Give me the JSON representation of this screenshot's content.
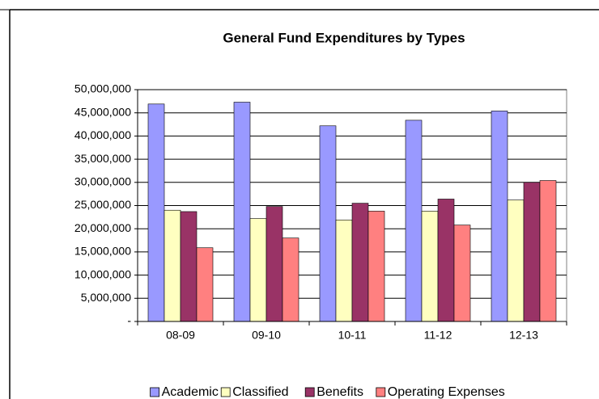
{
  "chart_data": {
    "type": "bar",
    "title": "General Fund Expenditures by Types",
    "categories": [
      "08-09",
      "09-10",
      "10-11",
      "11-12",
      "12-13"
    ],
    "series": [
      {
        "name": "Academic",
        "color": "#9999ff",
        "values": [
          46900000,
          47300000,
          42200000,
          43400000,
          45400000
        ]
      },
      {
        "name": "Classified",
        "color": "#ffffc0",
        "values": [
          24000000,
          22200000,
          21900000,
          23800000,
          26200000
        ]
      },
      {
        "name": "Benefits",
        "color": "#993366",
        "values": [
          23700000,
          24800000,
          25500000,
          26400000,
          30000000
        ]
      },
      {
        "name": "Operating Expenses",
        "color": "#ff8080",
        "values": [
          15900000,
          18000000,
          23800000,
          20800000,
          30400000
        ]
      }
    ],
    "ylim": [
      0,
      50000000
    ],
    "yticks": [
      {
        "value": 0,
        "label": "-"
      },
      {
        "value": 5000000,
        "label": "5,000,000"
      },
      {
        "value": 10000000,
        "label": "10,000,000"
      },
      {
        "value": 15000000,
        "label": "15,000,000"
      },
      {
        "value": 20000000,
        "label": "20,000,000"
      },
      {
        "value": 25000000,
        "label": "25,000,000"
      },
      {
        "value": 30000000,
        "label": "30,000,000"
      },
      {
        "value": 35000000,
        "label": "35,000,000"
      },
      {
        "value": 40000000,
        "label": "40,000,000"
      },
      {
        "value": 45000000,
        "label": "45,000,000"
      },
      {
        "value": 50000000,
        "label": "50,000,000"
      }
    ],
    "grid": true,
    "legend": "bottom"
  }
}
